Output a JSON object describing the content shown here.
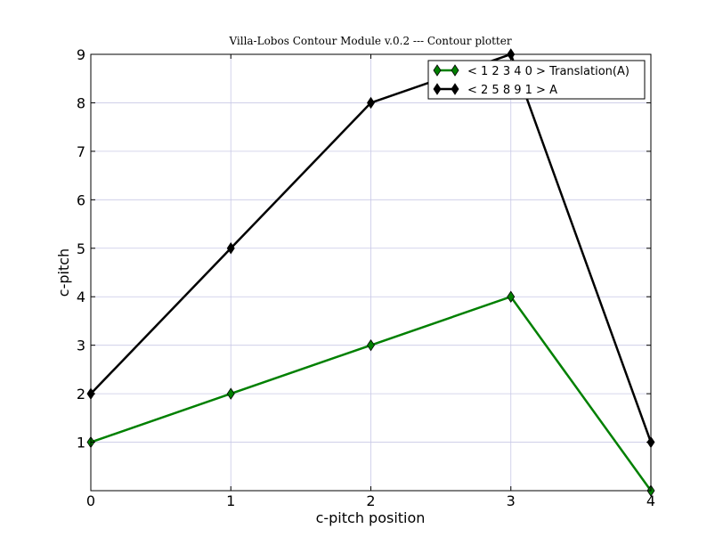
{
  "chart_data": {
    "type": "line",
    "title": "Villa-Lobos Contour Module v.0.2 --- Contour plotter",
    "xlabel": "c-pitch position",
    "ylabel": "c-pitch",
    "x": [
      0,
      1,
      2,
      3,
      4
    ],
    "xlim": [
      0,
      4
    ],
    "ylim": [
      0,
      9
    ],
    "xticks": [
      0,
      1,
      2,
      3,
      4
    ],
    "yticks": [
      1,
      2,
      3,
      4,
      5,
      6,
      7,
      8,
      9
    ],
    "grid": true,
    "legend": "top-right",
    "marker": "diamond",
    "series": [
      {
        "name": "< 1 2 3 4 0 > Translation(A)",
        "values": [
          1,
          2,
          3,
          4,
          0
        ],
        "color": "#008000"
      },
      {
        "name": "< 2 5 8 9 1 > A",
        "values": [
          2,
          5,
          8,
          9,
          1
        ],
        "color": "#000000"
      }
    ]
  }
}
